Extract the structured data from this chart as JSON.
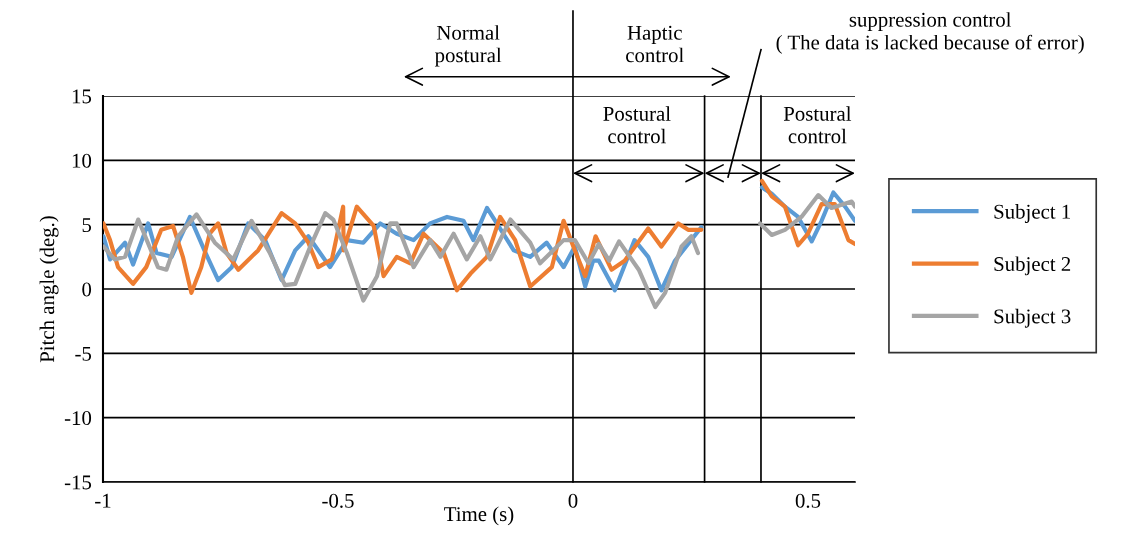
{
  "chart_data": {
    "type": "line",
    "xlabel": "Time (s)",
    "ylabel": "Pitch angle (deg.)",
    "xlim": [
      -1,
      0.6
    ],
    "xticks": [
      -1,
      -0.5,
      0,
      0.5
    ],
    "ylim": [
      -15,
      15
    ],
    "yticks": [
      -15,
      -10,
      -5,
      0,
      5,
      10,
      15
    ],
    "grid": "y",
    "legend": "right",
    "line_style": "solid",
    "marker": "none",
    "ref_lines": [
      {
        "axis": "x",
        "value": 0,
        "color": "#000000"
      },
      {
        "axis": "x",
        "value": 0.28,
        "color": "#000000"
      },
      {
        "axis": "x",
        "value": 0.4,
        "color": "#000000"
      }
    ],
    "annotations": [
      "Normal\npostural",
      "Haptic\ncontrol",
      "suppression control\n( The data is lacked because of error)",
      "Postural\ncontrol",
      "Postural\ncontrol"
    ],
    "series": [
      {
        "name": "Subject 1",
        "color": "#5b9bd5",
        "x": [
          -0.999,
          -0.985,
          -0.953,
          -0.936,
          -0.904,
          -0.886,
          -0.854,
          -0.815,
          -0.783,
          -0.755,
          -0.726,
          -0.691,
          -0.655,
          -0.62,
          -0.591,
          -0.563,
          -0.517,
          -0.481,
          -0.446,
          -0.41,
          -0.375,
          -0.339,
          -0.304,
          -0.268,
          -0.233,
          -0.212,
          -0.183,
          -0.162,
          -0.126,
          -0.091,
          -0.056,
          -0.02,
          0.004,
          0.026,
          0.043,
          0.055,
          0.089,
          0.131,
          0.16,
          0.188,
          0.217,
          0.245,
          0.273,
          0.33,
          0.402,
          0.423,
          0.451,
          0.479,
          0.508,
          0.529,
          0.554,
          0.579,
          0.6
        ],
        "values": [
          4.1,
          2.3,
          3.6,
          1.9,
          5.1,
          2.8,
          2.5,
          5.6,
          2.9,
          0.7,
          1.7,
          5.1,
          3.8,
          0.7,
          3.0,
          4.1,
          1.7,
          3.8,
          3.6,
          5.1,
          4.3,
          3.8,
          5.1,
          5.6,
          5.3,
          3.8,
          6.3,
          5.1,
          3.0,
          2.5,
          3.6,
          1.7,
          3.3,
          0.2,
          2.2,
          2.2,
          -0.1,
          3.8,
          2.5,
          -0.1,
          2.2,
          3.5,
          4.8,
          null,
          7.9,
          7.4,
          6.4,
          5.6,
          3.7,
          5.3,
          7.5,
          6.4,
          5.3
        ]
      },
      {
        "name": "Subject 2",
        "color": "#ed7d31",
        "x": [
          -0.999,
          -0.985,
          -0.968,
          -0.936,
          -0.908,
          -0.876,
          -0.851,
          -0.83,
          -0.812,
          -0.791,
          -0.773,
          -0.755,
          -0.737,
          -0.712,
          -0.67,
          -0.62,
          -0.591,
          -0.563,
          -0.542,
          -0.513,
          -0.489,
          -0.488,
          -0.46,
          -0.424,
          -0.403,
          -0.375,
          -0.346,
          -0.318,
          -0.275,
          -0.247,
          -0.218,
          -0.183,
          -0.155,
          -0.123,
          -0.091,
          -0.045,
          -0.02,
          0.004,
          0.026,
          0.048,
          0.082,
          0.11,
          0.16,
          0.188,
          0.224,
          0.245,
          0.273,
          0.33,
          0.402,
          0.423,
          0.451,
          0.479,
          0.5,
          0.529,
          0.557,
          0.586,
          0.6
        ],
        "values": [
          5.1,
          3.8,
          1.7,
          0.4,
          1.7,
          4.6,
          4.9,
          2.5,
          -0.3,
          1.7,
          4.3,
          5.1,
          2.8,
          1.5,
          3.0,
          5.9,
          5.1,
          3.6,
          1.7,
          2.3,
          6.4,
          3.0,
          6.4,
          4.9,
          1.0,
          2.5,
          2.0,
          4.3,
          2.8,
          -0.1,
          1.2,
          2.5,
          5.6,
          3.8,
          0.2,
          1.7,
          5.3,
          3.0,
          1.0,
          4.1,
          1.5,
          2.2,
          4.7,
          3.3,
          5.1,
          4.6,
          4.6,
          null,
          8.4,
          7.2,
          6.4,
          3.4,
          4.3,
          6.6,
          6.6,
          3.8,
          3.5
        ]
      },
      {
        "name": "Subject 3",
        "color": "#a5a5a5",
        "x": [
          -0.999,
          -0.975,
          -0.953,
          -0.925,
          -0.883,
          -0.865,
          -0.84,
          -0.801,
          -0.762,
          -0.723,
          -0.684,
          -0.645,
          -0.613,
          -0.591,
          -0.559,
          -0.527,
          -0.51,
          -0.481,
          -0.446,
          -0.417,
          -0.389,
          -0.375,
          -0.339,
          -0.304,
          -0.282,
          -0.254,
          -0.226,
          -0.197,
          -0.176,
          -0.133,
          -0.091,
          -0.07,
          -0.02,
          0.004,
          0.033,
          0.055,
          0.077,
          0.098,
          0.14,
          0.175,
          0.196,
          0.231,
          0.252,
          0.266,
          0.33,
          0.398,
          0.423,
          0.451,
          0.486,
          0.522,
          0.55,
          0.593,
          0.6
        ],
        "values": [
          3.3,
          2.3,
          2.5,
          5.4,
          1.7,
          1.5,
          4.1,
          5.8,
          3.6,
          2.3,
          5.3,
          2.8,
          0.3,
          0.4,
          3.3,
          5.9,
          5.4,
          2.8,
          -0.9,
          1.0,
          5.1,
          5.1,
          1.7,
          3.8,
          2.5,
          4.3,
          2.3,
          4.1,
          2.3,
          5.4,
          3.6,
          2.0,
          3.8,
          3.8,
          2.0,
          3.5,
          2.2,
          3.7,
          1.5,
          -1.4,
          -0.3,
          3.3,
          4.1,
          2.8,
          null,
          5.1,
          4.2,
          4.6,
          5.6,
          7.3,
          6.3,
          6.8,
          6.4
        ]
      }
    ]
  }
}
